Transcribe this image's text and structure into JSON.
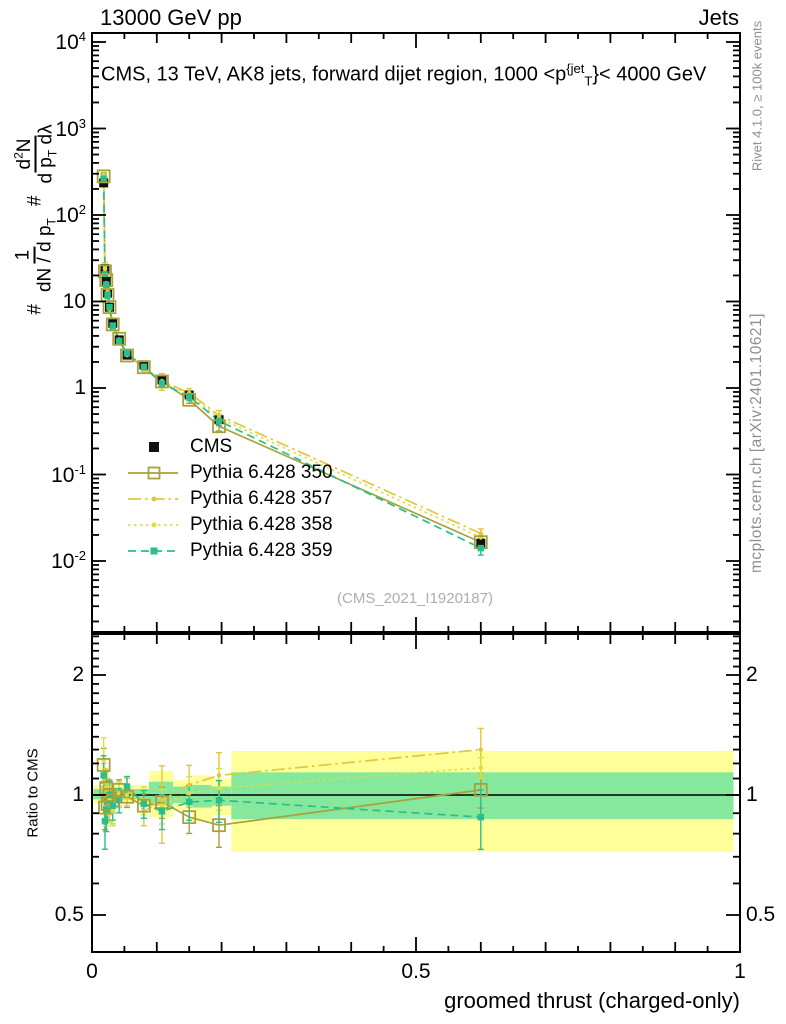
{
  "header": {
    "left": "13000 GeV pp",
    "right": "Jets"
  },
  "plot_title": {
    "pre": "CMS, 13 TeV, AK8 jets, forward dijet region, 1000 <p",
    "sup": "{jet",
    "sub": "T",
    "post": "}< 4000 GeV"
  },
  "ylabel": {
    "hash1": "#",
    "f1_num": "1",
    "f1_den_a": "dN / d p",
    "f1_den_sub": "T",
    "hash2": "#",
    "f2_num_a": "d",
    "f2_num_sup": "2",
    "f2_num_b": "N",
    "f2_den_a": "d p",
    "f2_den_sub": "T",
    "f2_den_b": " dλ"
  },
  "ratio_label": "Ratio to CMS",
  "xlabel": "groomed thrust (charged-only)",
  "watermark": "(CMS_2021_I1920187)",
  "credits": {
    "rivet": "Rivet 4.1.0, ≥ 100k events",
    "mcplots": "mcplots.cern.ch [arXiv:2401.10621]"
  },
  "axis": {
    "x_tick_labels": [
      {
        "v": 0,
        "t": "0"
      },
      {
        "v": 0.5,
        "t": "0.5"
      },
      {
        "v": 1,
        "t": "1"
      }
    ],
    "y_main_exponents": [
      4,
      3,
      2,
      1,
      0,
      -1,
      -2
    ],
    "ratio_tick_labels": [
      {
        "v": 2,
        "t": "2"
      },
      {
        "v": 1,
        "t": "1"
      },
      {
        "v": 0.5,
        "t": "0.5"
      }
    ]
  },
  "chart_data": {
    "type": "line",
    "title": "CMS, 13 TeV, AK8 jets, forward dijet region, 1000 < p_T^jet < 4000 GeV",
    "xlabel": "groomed thrust (charged-only)",
    "ylabel": "# 1/(dN/dp_T) # d2N/(dp_T dlambda)",
    "ratio_ylabel": "Ratio to CMS",
    "x_range": [
      0,
      1
    ],
    "y_scale": "log",
    "y_range_main": [
      0.0015,
      12600
    ],
    "y_range_ratio": [
      0.404,
      2.53
    ],
    "grid": false,
    "legend_position": "inside-left",
    "x": [
      0.018,
      0.02,
      0.022,
      0.024,
      0.027,
      0.032,
      0.042,
      0.054,
      0.08,
      0.108,
      0.15,
      0.196,
      0.6
    ],
    "cms": {
      "label": "CMS",
      "color": "#111111",
      "marker": "filled-square",
      "values": [
        235,
        24,
        17,
        12.5,
        8.6,
        5.6,
        3.6,
        2.4,
        1.85,
        1.24,
        0.83,
        0.43,
        0.016
      ],
      "err_frac": [
        0.03,
        0.05,
        0.05,
        0.05,
        0.04,
        0.04,
        0.03,
        0.03,
        0.03,
        0.04,
        0.04,
        0.05,
        0.12
      ]
    },
    "series": [
      {
        "name": "Pythia 6.428 350",
        "color": "#a8a23a",
        "dash": "solid",
        "marker": "open-square",
        "ratio": [
          1.19,
          0.93,
          1.04,
          0.95,
          1.0,
          0.97,
          1.03,
          0.99,
          0.94,
          0.96,
          0.88,
          0.84,
          1.03
        ],
        "err_frac": [
          0.1,
          0.12,
          0.1,
          0.09,
          0.08,
          0.07,
          0.06,
          0.06,
          0.07,
          0.09,
          0.09,
          0.12,
          0.1
        ]
      },
      {
        "name": "Pythia 6.428 357",
        "color": "#e5c53c",
        "dash": "dashdot",
        "marker": "dot",
        "ratio": [
          1.08,
          1.03,
          0.96,
          1.0,
          0.94,
          0.92,
          1.0,
          1.04,
          0.91,
          0.97,
          1.06,
          1.12,
          1.3
        ],
        "err_frac": [
          0.11,
          0.13,
          0.11,
          0.1,
          0.09,
          0.08,
          0.07,
          0.06,
          0.08,
          0.22,
          0.12,
          0.14,
          0.13
        ]
      },
      {
        "name": "Pythia 6.428 358",
        "color": "#d9e045",
        "dash": "dot",
        "marker": "dot",
        "ratio": [
          1.22,
          0.99,
          0.94,
          1.05,
          0.98,
          0.91,
          1.01,
          1.0,
          0.97,
          0.94,
          1.01,
          1.04,
          1.17
        ],
        "err_frac": [
          0.14,
          0.12,
          0.11,
          0.1,
          0.09,
          0.08,
          0.07,
          0.06,
          0.08,
          0.1,
          0.1,
          0.12,
          0.06
        ]
      },
      {
        "name": "Pythia 6.428 359",
        "color": "#2abf8a",
        "dash": "dash",
        "marker": "filled-square",
        "ratio": [
          1.12,
          0.86,
          0.92,
          0.96,
          1.0,
          0.94,
          0.97,
          1.05,
          0.95,
          0.91,
          0.96,
          0.97,
          0.88
        ],
        "err_frac": [
          0.12,
          0.15,
          0.12,
          0.1,
          0.09,
          0.08,
          0.07,
          0.06,
          0.08,
          0.1,
          0.1,
          0.12,
          0.17
        ]
      }
    ],
    "bands": [
      {
        "x0": 0.002,
        "x1": 0.088,
        "ylo": 0.95,
        "yhi": 1.06,
        "glo": 0.975,
        "ghi": 1.035
      },
      {
        "x0": 0.088,
        "x1": 0.125,
        "ylo": 0.88,
        "yhi": 1.15,
        "glo": 0.94,
        "ghi": 1.08
      },
      {
        "x0": 0.125,
        "x1": 0.155,
        "ylo": 0.92,
        "yhi": 1.09,
        "glo": 0.955,
        "ghi": 1.05
      },
      {
        "x0": 0.155,
        "x1": 0.185,
        "ylo": 0.86,
        "yhi": 1.12,
        "glo": 0.93,
        "ghi": 1.06
      },
      {
        "x0": 0.185,
        "x1": 0.215,
        "ylo": 0.89,
        "yhi": 1.1,
        "glo": 0.94,
        "ghi": 1.05
      },
      {
        "x0": 0.215,
        "x1": 0.99,
        "ylo": 0.72,
        "yhi": 1.29,
        "glo": 0.87,
        "ghi": 1.14
      }
    ],
    "band_colors": {
      "yellow": "#ffff99",
      "green": "#86e89c"
    },
    "unity_line_color": "#000000"
  }
}
